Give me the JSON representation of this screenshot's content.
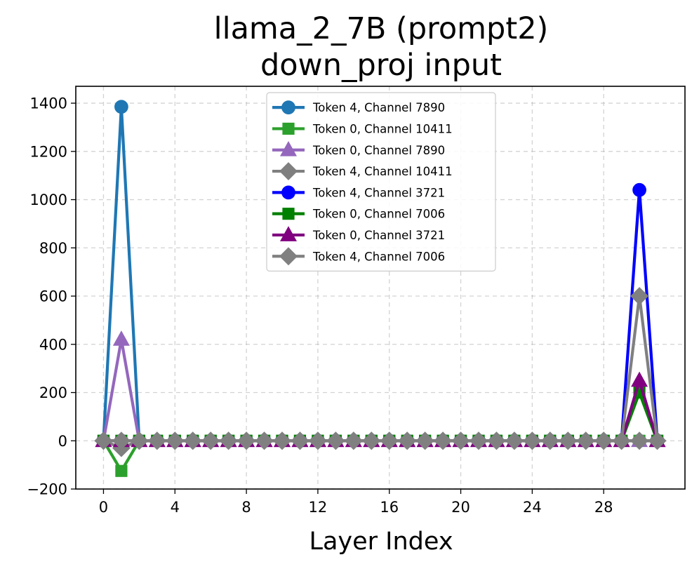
{
  "chart_data": {
    "type": "line",
    "title": [
      "llama_2_7B (prompt2)",
      "down_proj input"
    ],
    "xlabel": "Layer Index",
    "ylabel": "",
    "xlim": [
      -1.55,
      32.55
    ],
    "ylim": [
      -200,
      1470
    ],
    "xticks": [
      0,
      4,
      8,
      12,
      16,
      20,
      24,
      28
    ],
    "yticks": [
      -200,
      0,
      200,
      400,
      600,
      800,
      1000,
      1200,
      1400
    ],
    "ytick_labels": [
      "−200",
      "0",
      "200",
      "400",
      "600",
      "800",
      "1000",
      "1200",
      "1400"
    ],
    "grid": true,
    "legend_position": "upper center",
    "x": [
      0,
      1,
      2,
      3,
      4,
      5,
      6,
      7,
      8,
      9,
      10,
      11,
      12,
      13,
      14,
      15,
      16,
      17,
      18,
      19,
      20,
      21,
      22,
      23,
      24,
      25,
      26,
      27,
      28,
      29,
      30,
      31
    ],
    "series": [
      {
        "name": "Token 4, Channel 7890",
        "color": "#1f77b4",
        "marker": "circle",
        "values": [
          0,
          1385,
          0,
          0,
          0,
          0,
          0,
          0,
          0,
          0,
          0,
          0,
          0,
          0,
          0,
          0,
          0,
          0,
          0,
          0,
          0,
          0,
          0,
          0,
          0,
          0,
          0,
          0,
          0,
          0,
          0,
          0
        ]
      },
      {
        "name": "Token 0, Channel 10411",
        "color": "#2ca02c",
        "marker": "square",
        "values": [
          0,
          -125,
          0,
          0,
          0,
          0,
          0,
          0,
          0,
          0,
          0,
          0,
          0,
          0,
          0,
          0,
          0,
          0,
          0,
          0,
          0,
          0,
          0,
          0,
          0,
          0,
          0,
          0,
          0,
          0,
          0,
          0
        ]
      },
      {
        "name": "Token 0, Channel 7890",
        "color": "#9467bd",
        "marker": "triangle",
        "values": [
          0,
          420,
          0,
          0,
          0,
          0,
          0,
          0,
          0,
          0,
          0,
          0,
          0,
          0,
          0,
          0,
          0,
          0,
          0,
          0,
          0,
          0,
          0,
          0,
          0,
          0,
          0,
          0,
          0,
          0,
          0,
          0
        ]
      },
      {
        "name": "Token 4, Channel 10411",
        "color": "#7f7f7f",
        "marker": "diamond",
        "values": [
          0,
          -30,
          0,
          0,
          0,
          0,
          0,
          0,
          0,
          0,
          0,
          0,
          0,
          0,
          0,
          0,
          0,
          0,
          0,
          0,
          0,
          0,
          0,
          0,
          0,
          0,
          0,
          0,
          0,
          0,
          0,
          0
        ]
      },
      {
        "name": "Token 4, Channel 3721",
        "color": "#0000ff",
        "marker": "circle",
        "values": [
          0,
          0,
          0,
          0,
          0,
          0,
          0,
          0,
          0,
          0,
          0,
          0,
          0,
          0,
          0,
          0,
          0,
          0,
          0,
          0,
          0,
          0,
          0,
          0,
          0,
          0,
          0,
          0,
          0,
          0,
          1040,
          0
        ]
      },
      {
        "name": "Token 0, Channel 7006",
        "color": "#008000",
        "marker": "square",
        "values": [
          0,
          0,
          0,
          0,
          0,
          0,
          0,
          0,
          0,
          0,
          0,
          0,
          0,
          0,
          0,
          0,
          0,
          0,
          0,
          0,
          0,
          0,
          0,
          0,
          0,
          0,
          0,
          0,
          0,
          0,
          200,
          0
        ]
      },
      {
        "name": "Token 0, Channel 3721",
        "color": "#800080",
        "marker": "triangle",
        "values": [
          0,
          0,
          0,
          0,
          0,
          0,
          0,
          0,
          0,
          0,
          0,
          0,
          0,
          0,
          0,
          0,
          0,
          0,
          0,
          0,
          0,
          0,
          0,
          0,
          0,
          0,
          0,
          0,
          0,
          0,
          250,
          0
        ]
      },
      {
        "name": "Token 4, Channel 7006",
        "color": "#808080",
        "marker": "diamond",
        "values": [
          0,
          0,
          0,
          0,
          0,
          0,
          0,
          0,
          0,
          0,
          0,
          0,
          0,
          0,
          0,
          0,
          0,
          0,
          0,
          0,
          0,
          0,
          0,
          0,
          0,
          0,
          0,
          0,
          0,
          0,
          600,
          0
        ]
      }
    ]
  }
}
